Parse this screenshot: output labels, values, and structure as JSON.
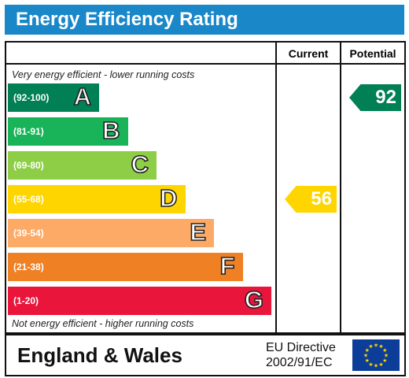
{
  "title": "Energy Efficiency Rating",
  "columns": {
    "current": "Current",
    "potential": "Potential"
  },
  "top_note": "Very energy efficient - lower running costs",
  "bottom_note": "Not energy efficient - higher running costs",
  "chart_data": {
    "type": "bar",
    "categories": [
      "A",
      "B",
      "C",
      "D",
      "E",
      "F",
      "G"
    ],
    "ranges": [
      "(92-100)",
      "(81-91)",
      "(69-80)",
      "(55-68)",
      "(39-54)",
      "(21-38)",
      "(1-20)"
    ],
    "colors": [
      "#008054",
      "#19b459",
      "#8dce46",
      "#ffd500",
      "#fcaa65",
      "#ef8023",
      "#e9153b"
    ],
    "current": {
      "value": 56,
      "band": "D",
      "color": "#ffd500"
    },
    "potential": {
      "value": 92,
      "band": "A",
      "color": "#008054"
    }
  },
  "footer": {
    "region": "England & Wales",
    "directive_line1": "EU Directive",
    "directive_line2": "2002/91/EC"
  },
  "icons": {
    "flag": "eu-flag-icon"
  }
}
